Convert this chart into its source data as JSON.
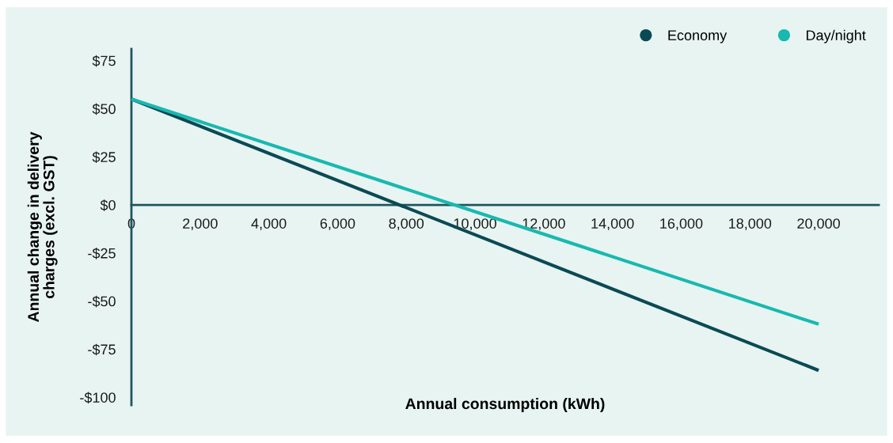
{
  "chart_data": {
    "type": "line",
    "xlabel": "Annual consumption (kWh)",
    "ylabel": "Annual change in delivery\ncharges (excl. GST)",
    "x": [
      0,
      20000
    ],
    "series": [
      {
        "name": "Economy",
        "color": "#0b4a55",
        "values": [
          55,
          -86
        ]
      },
      {
        "name": "Day/night",
        "color": "#17b9b0",
        "values": [
          55,
          -62
        ]
      }
    ],
    "xlim": [
      0,
      21750
    ],
    "ylim": [
      -104,
      81
    ],
    "xticks": [
      {
        "value": 0,
        "label": "0"
      },
      {
        "value": 2000,
        "label": "2,000"
      },
      {
        "value": 4000,
        "label": "4,000"
      },
      {
        "value": 6000,
        "label": "6,000"
      },
      {
        "value": 8000,
        "label": "8,000"
      },
      {
        "value": 10000,
        "label": "10,000"
      },
      {
        "value": 12000,
        "label": "12,000"
      },
      {
        "value": 14000,
        "label": "14,000"
      },
      {
        "value": 16000,
        "label": "16,000"
      },
      {
        "value": 18000,
        "label": "18,000"
      },
      {
        "value": 20000,
        "label": "20,000"
      }
    ],
    "yticks": [
      {
        "value": 75,
        "label": "$75"
      },
      {
        "value": 50,
        "label": "$50"
      },
      {
        "value": 25,
        "label": "$25"
      },
      {
        "value": 0,
        "label": "$0"
      },
      {
        "value": -25,
        "label": "-$25"
      },
      {
        "value": -50,
        "label": "-$50"
      },
      {
        "value": -75,
        "label": "-$75"
      },
      {
        "value": -100,
        "label": "-$100"
      }
    ],
    "grid": false,
    "legend": "top right",
    "marker": "none",
    "line_style": "solid"
  }
}
